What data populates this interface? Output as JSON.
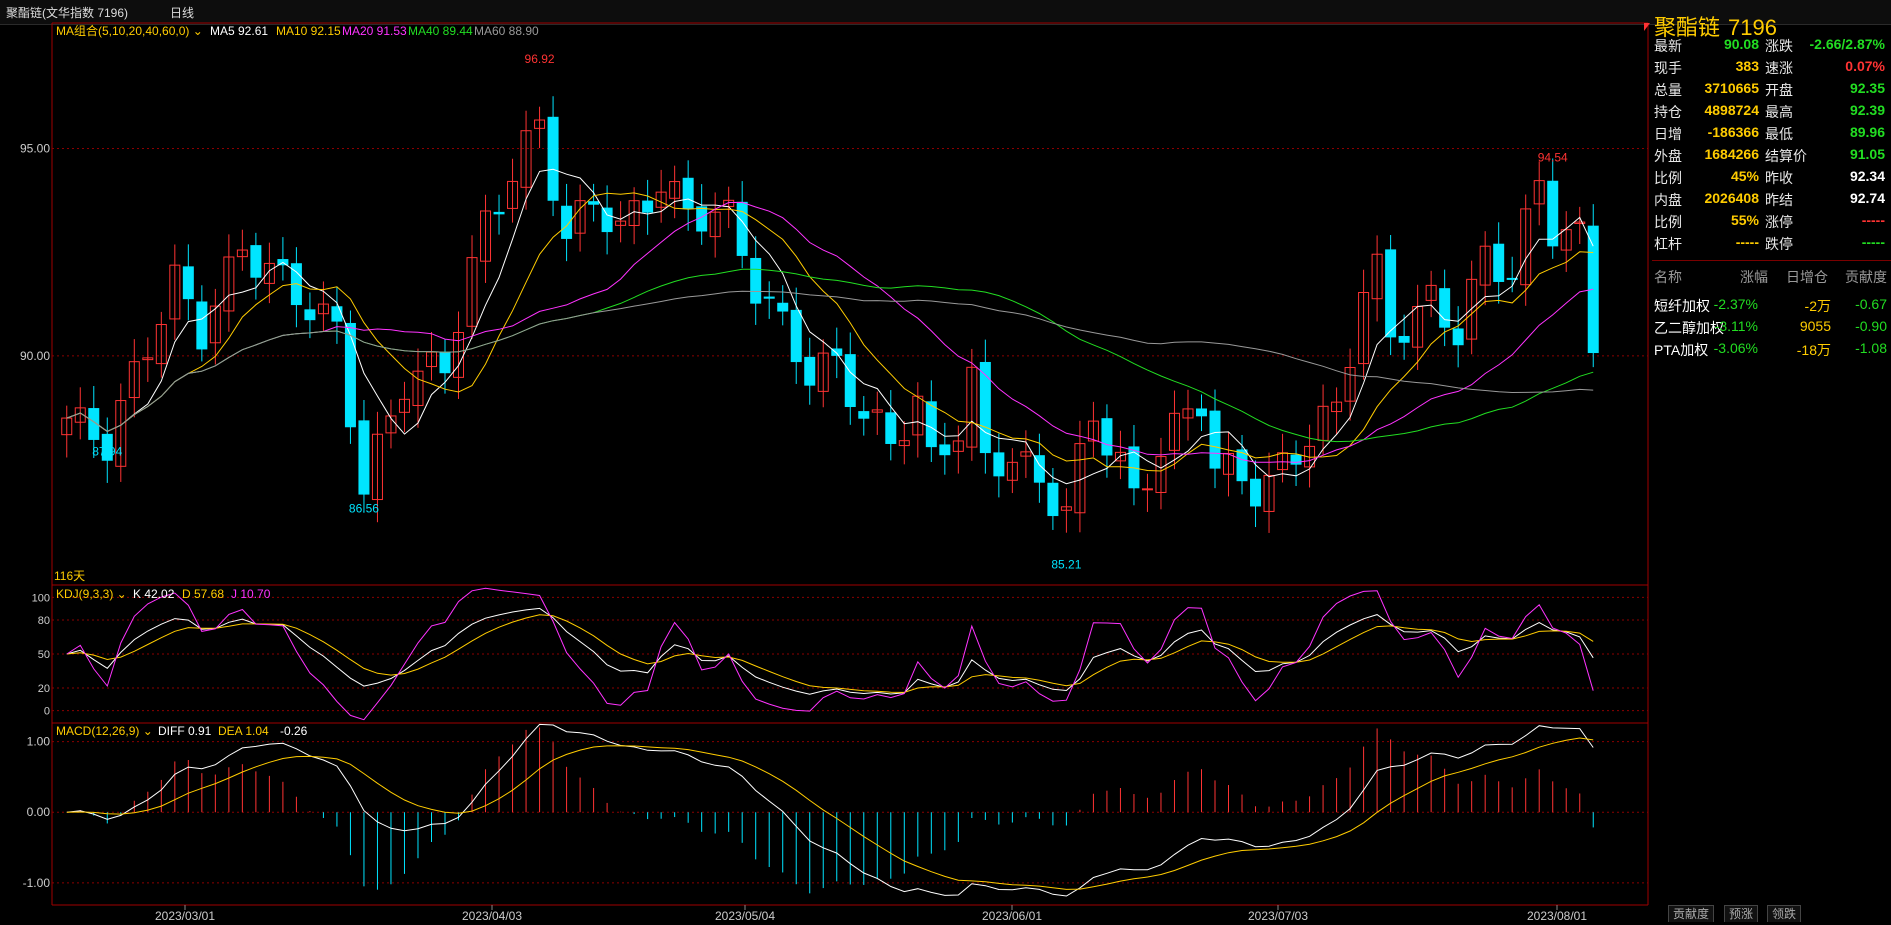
{
  "window": {
    "title": "聚酯链(文华指数 7196)",
    "period": "日线"
  },
  "main_legend": {
    "ma_group": "MA组合(5,10,20,40,60,0)",
    "items": [
      {
        "label": "MA5 92.61",
        "color": "#ffffff"
      },
      {
        "label": "MA10 92.15",
        "color": "#ffcc00"
      },
      {
        "label": "MA20 91.53",
        "color": "#ff33ff"
      },
      {
        "label": "MA40 89.44",
        "color": "#22dd22"
      },
      {
        "label": "MA60 88.90",
        "color": "#999999"
      }
    ]
  },
  "kdj_legend": {
    "name": "KDJ(9,3,3)",
    "k": "K 42.02",
    "d": "D 57.68",
    "j": "J 10.70"
  },
  "macd_legend": {
    "name": "MACD(12,26,9)",
    "diff": "DIFF 0.91",
    "dea": "DEA 1.04",
    "macd": "-0.26"
  },
  "days_label": "116天",
  "price_annotations": {
    "high": "96.92",
    "low": "85.21",
    "left_low1": "87.94",
    "left_low2": "86.56",
    "recent_high": "94.54"
  },
  "y_ticks_main": [
    "95.00",
    "90.00"
  ],
  "y_ticks_kdj": [
    "100",
    "80",
    "50",
    "20",
    "0"
  ],
  "y_ticks_macd": [
    "1.00",
    "0.00",
    "-1.00"
  ],
  "x_dates": [
    "2023/03/01",
    "2023/04/03",
    "2023/05/04",
    "2023/06/01",
    "2023/07/03",
    "2023/08/01"
  ],
  "quote": {
    "title": "聚酯链",
    "code": "7196",
    "rows": [
      {
        "l1": "最新",
        "v1": "90.08",
        "c1": "grn",
        "l2": "涨跌",
        "v2": "-2.66/2.87%",
        "c2": "grn"
      },
      {
        "l1": "现手",
        "v1": "383",
        "c1": "yel",
        "l2": "速涨",
        "v2": "0.07%",
        "c2": "red"
      },
      {
        "l1": "总量",
        "v1": "3710665",
        "c1": "yel",
        "l2": "开盘",
        "v2": "92.35",
        "c2": "grn"
      },
      {
        "l1": "持仓",
        "v1": "4898724",
        "c1": "yel",
        "l2": "最高",
        "v2": "92.39",
        "c2": "grn"
      },
      {
        "l1": "日增",
        "v1": "-186366",
        "c1": "yel",
        "l2": "最低",
        "v2": "89.96",
        "c2": "grn"
      },
      {
        "l1": "外盘",
        "v1": "1684266",
        "c1": "yel",
        "l2": "结算价",
        "v2": "91.05",
        "c2": "grn"
      },
      {
        "l1": "比例",
        "v1": "45%",
        "c1": "yel",
        "l2": "昨收",
        "v2": "92.34",
        "c2": "wht"
      },
      {
        "l1": "内盘",
        "v1": "2026408",
        "c1": "yel",
        "l2": "昨结",
        "v2": "92.74",
        "c2": "wht"
      },
      {
        "l1": "比例",
        "v1": "55%",
        "c1": "yel",
        "l2": "涨停",
        "v2": "-----",
        "c2": "red"
      },
      {
        "l1": "杠杆",
        "v1": "-----",
        "c1": "yel",
        "l2": "跌停",
        "v2": "-----",
        "c2": "grn"
      }
    ]
  },
  "contrib": {
    "headers": [
      "名称",
      "涨幅",
      "日增仓",
      "贡献度"
    ],
    "rows": [
      {
        "name": "短纤加权",
        "chg": "-2.37%",
        "oi": "-2万",
        "contrib": "-0.67"
      },
      {
        "name": "乙二醇加权",
        "chg": "-3.11%",
        "oi": "9055",
        "contrib": "-0.90"
      },
      {
        "name": "PTA加权",
        "chg": "-3.06%",
        "oi": "-18万",
        "contrib": "-1.08"
      }
    ]
  },
  "tabs": [
    "贡献度",
    "预涨",
    "领跌"
  ],
  "colors": {
    "up": "#ff3333",
    "down": "#00e5ff",
    "grid": "#8b0000",
    "border": "#a00000"
  },
  "chart_data": {
    "type": "candlestick",
    "x_tick_labels": [
      "2023/03/01",
      "2023/04/03",
      "2023/05/04",
      "2023/06/01",
      "2023/07/03",
      "2023/08/01"
    ],
    "panels": {
      "price": {
        "ylim": [
          84.5,
          98.0
        ],
        "ticks": [
          95,
          90
        ]
      },
      "kdj": {
        "ylim": [
          -10,
          110
        ],
        "ticks": [
          100,
          80,
          50,
          20,
          0
        ]
      },
      "macd": {
        "ylim": [
          -1.3,
          1.25
        ],
        "ticks": [
          1,
          0,
          -1
        ]
      }
    },
    "series_notes": [
      "MA5",
      "MA10",
      "MA20",
      "MA40",
      "MA60"
    ],
    "key_points": [
      {
        "x_index": 3,
        "value": 87.94,
        "kind": "low"
      },
      {
        "x_index": 22,
        "value": 86.56,
        "kind": "low"
      },
      {
        "x_index": 35,
        "value": 96.92,
        "kind": "high"
      },
      {
        "x_index": 74,
        "value": 85.21,
        "kind": "low"
      },
      {
        "x_index": 110,
        "value": 94.54,
        "kind": "high"
      }
    ],
    "pivots": [
      [
        0,
        88.5
      ],
      [
        3,
        87.9
      ],
      [
        5,
        89.5
      ],
      [
        8,
        91.8
      ],
      [
        10,
        90.6
      ],
      [
        13,
        92.6
      ],
      [
        16,
        91.8
      ],
      [
        18,
        91.2
      ],
      [
        20,
        90.6
      ],
      [
        22,
        86.8
      ],
      [
        25,
        89.4
      ],
      [
        28,
        89.8
      ],
      [
        31,
        93.2
      ],
      [
        35,
        95.6
      ],
      [
        37,
        92.8
      ],
      [
        39,
        93.8
      ],
      [
        41,
        93.0
      ],
      [
        44,
        94.2
      ],
      [
        46,
        93.4
      ],
      [
        48,
        93.5
      ],
      [
        49,
        93.3
      ],
      [
        51,
        91.7
      ],
      [
        53,
        90.7
      ],
      [
        55,
        89.6
      ],
      [
        57,
        89.8
      ],
      [
        59,
        88.6
      ],
      [
        61,
        87.9
      ],
      [
        63,
        88.9
      ],
      [
        64,
        87.4
      ],
      [
        66,
        88.3
      ],
      [
        67,
        89.4
      ],
      [
        68,
        87.4
      ],
      [
        70,
        87.6
      ],
      [
        72,
        86.9
      ],
      [
        74,
        86.3
      ],
      [
        76,
        88.6
      ],
      [
        78,
        87.4
      ],
      [
        79,
        86.5
      ],
      [
        81,
        87.8
      ],
      [
        84,
        89.0
      ],
      [
        85,
        87.3
      ],
      [
        87,
        87.1
      ],
      [
        88,
        86.8
      ],
      [
        89,
        86.9
      ],
      [
        91,
        87.7
      ],
      [
        92,
        88.1
      ],
      [
        94,
        88.7
      ],
      [
        96,
        91.6
      ],
      [
        97,
        92.0
      ],
      [
        98,
        90.5
      ],
      [
        101,
        91.3
      ],
      [
        103,
        90.6
      ],
      [
        105,
        92.4
      ],
      [
        107,
        92.0
      ],
      [
        109,
        94.2
      ],
      [
        110,
        93.1
      ],
      [
        112,
        92.8
      ],
      [
        113,
        90.08
      ]
    ]
  }
}
